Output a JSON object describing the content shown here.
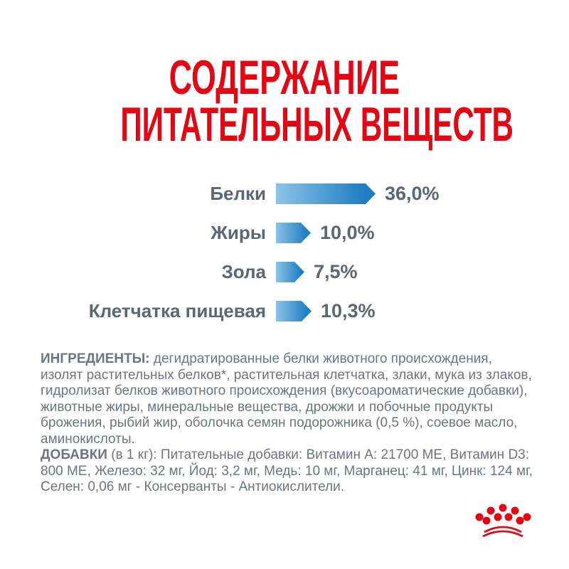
{
  "title": {
    "line1": "СОДЕРЖАНИЕ",
    "line2": "ПИТАТЕЛЬНЫХ ВЕЩЕСТВ",
    "color": "#e30613"
  },
  "chart_data": {
    "type": "bar",
    "orientation": "horizontal",
    "title": "СОДЕРЖАНИЕ ПИТАТЕЛЬНЫХ ВЕЩЕСТВ",
    "categories": [
      "Белки",
      "Жиры",
      "Зола",
      "Клетчатка пищевая"
    ],
    "values": [
      36.0,
      10.0,
      7.5,
      10.3
    ],
    "value_labels": [
      "36,0%",
      "10,0%",
      "7,5%",
      "10,3%"
    ],
    "unit": "%",
    "axis": "none",
    "grid": false,
    "legend": false,
    "bar_gradient_start": "#8cc3e8",
    "bar_gradient_end": "#1e7fc2",
    "text_color": "#5a6775"
  },
  "ingredients": {
    "heading": "ИНГРЕДИЕНТЫ:",
    "body": "дегидратированные белки животного происхождения, изолят растительных белков*, растительная клетчатка, злаки, мука из злаков, гидролизат белков животного происхождения (вкусоароматические добавки), животные жиры, минеральные вещества, дрожжи и побочные продукты брожения, рыбий жир, оболочка семян подорожника (0,5 %), соевое масло, аминокислоты."
  },
  "additives": {
    "heading": "ДОБАВКИ",
    "body": "(в 1 кг): Питательные добавки: Витамин A: 21700 МЕ, Витамин D3: 800 МЕ, Железо: 32 мг, Йод: 3,2 мг, Медь: 10 мг, Марганец: 41 мг, Цинк: 124 мг, Селен: 0,06 мг - Консерванты - Антиокислители."
  },
  "logo": {
    "name": "royal-canin-crown",
    "color": "#e30613"
  }
}
